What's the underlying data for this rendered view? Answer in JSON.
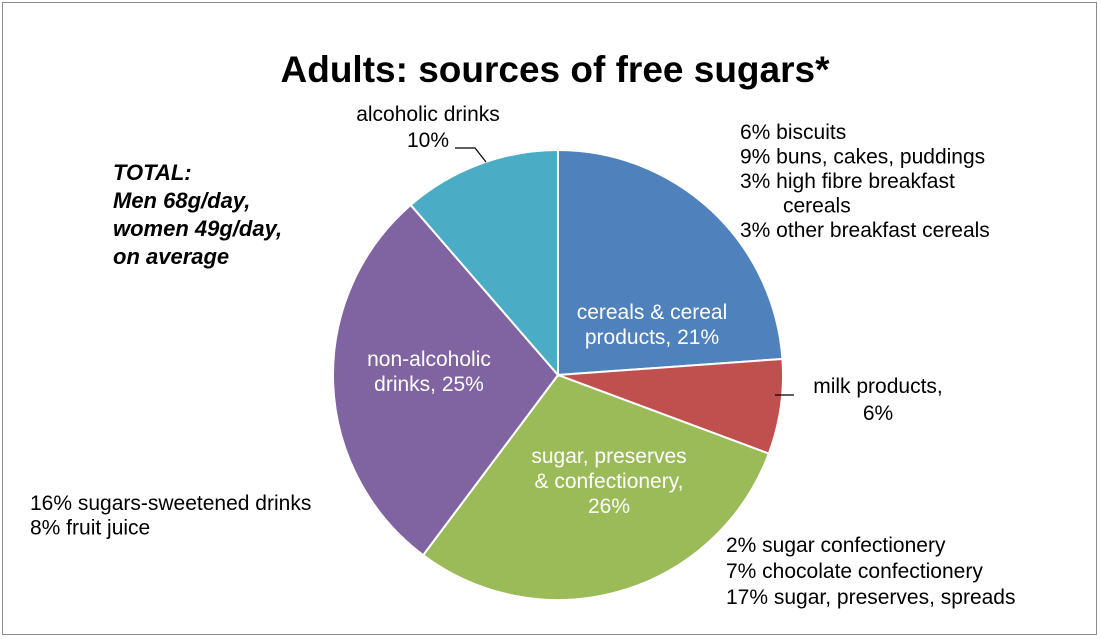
{
  "chart_data": {
    "type": "pie",
    "title": "Adults: sources of free sugars*",
    "start_angle_deg": 0,
    "direction": "clockwise",
    "slices": [
      {
        "label": "cereals & cereal products, 21%",
        "value": 21,
        "color": "#4F81BD"
      },
      {
        "label": "milk products, 6%",
        "value": 6,
        "color": "#C0504D"
      },
      {
        "label": "sugar, preserves & confectionery, 26%",
        "value": 26,
        "color": "#9BBB59"
      },
      {
        "label": "non-alcoholic drinks, 25%",
        "value": 25,
        "color": "#8064A2"
      },
      {
        "label": "alcoholic drinks 10%",
        "value": 10,
        "color": "#4BACC6"
      }
    ],
    "inner_labels": {
      "cereals": [
        "cereals & cereal",
        "products, 21%"
      ],
      "sugar": [
        "sugar, preserves",
        "& confectionery,",
        "26%"
      ],
      "nonalc": [
        "non-alcoholic",
        "drinks, 25%"
      ]
    },
    "outer_labels": {
      "alcoholic": [
        "alcoholic drinks",
        "10%"
      ],
      "milk": [
        "milk products,",
        "6%"
      ]
    },
    "annotations": {
      "cereals_breakdown": [
        "6% biscuits",
        "9% buns, cakes, puddings",
        "3% high fibre breakfast",
        "cereals",
        "3% other breakfast cereals"
      ],
      "sugar_breakdown": [
        "2% sugar confectionery",
        "7% chocolate confectionery",
        "17% sugar, preserves, spreads"
      ],
      "drinks_breakdown": [
        "16% sugars-sweetened drinks",
        "8% fruit juice"
      ],
      "total": [
        "TOTAL:",
        "Men 68g/day,",
        "women 49g/day,",
        "on average"
      ]
    },
    "legend": "none"
  }
}
